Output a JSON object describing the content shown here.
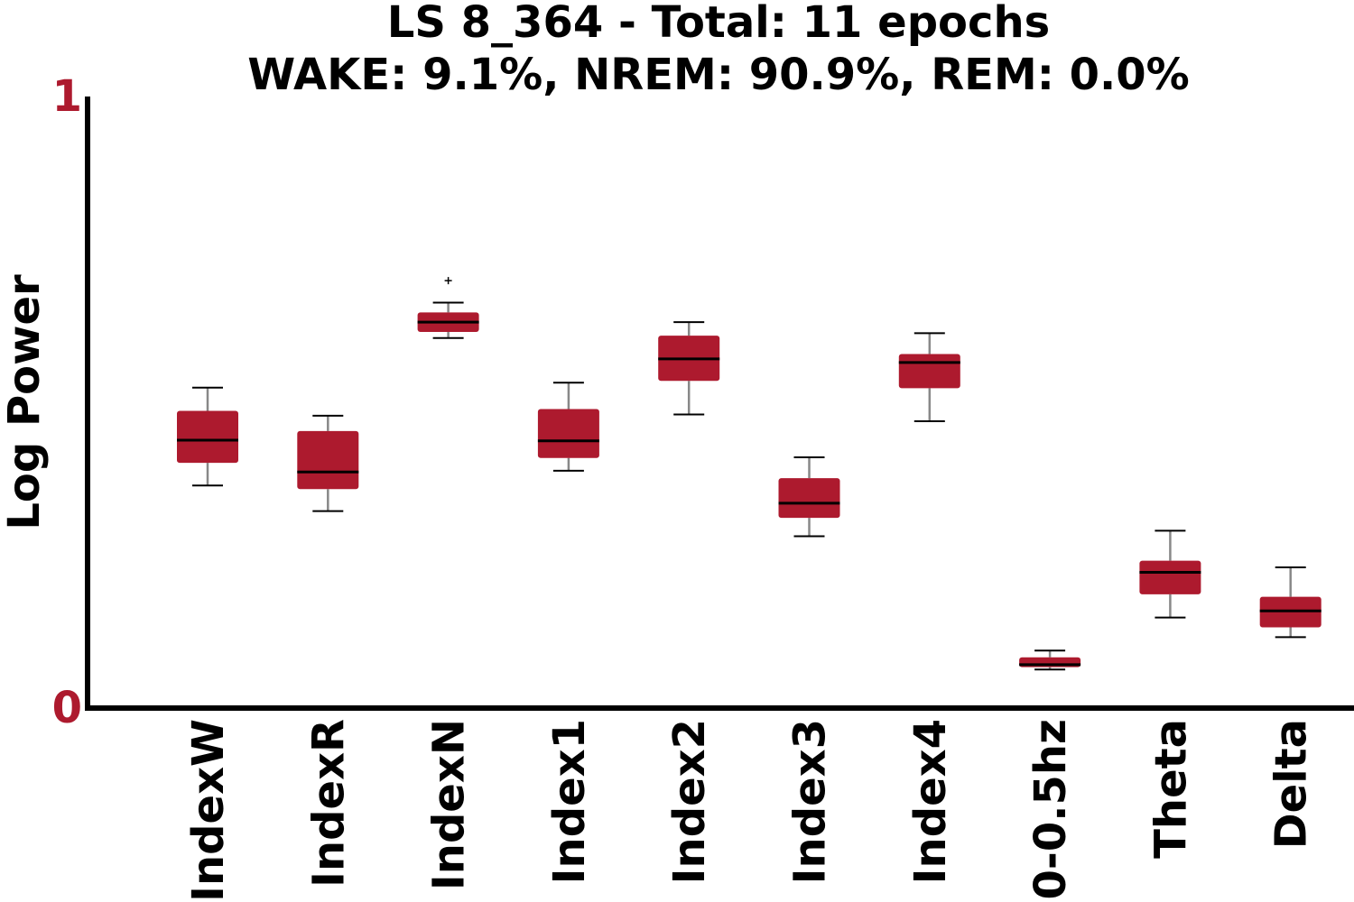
{
  "chart_data": {
    "type": "box",
    "title": "LS 8_364 - Total: 11 epochs",
    "subtitle": "WAKE: 9.1%, NREM: 90.9%, REM: 0.0%",
    "xlabel": "",
    "ylabel": "Log Power",
    "ylim": [
      0,
      1
    ],
    "yticks": [
      "0",
      "1"
    ],
    "categories": [
      "IndexW",
      "IndexR",
      "IndexN",
      "Index1",
      "Index2",
      "Index3",
      "Index4",
      "0-0.5hz",
      "Theta",
      "Delta"
    ],
    "boxes": [
      {
        "whisker_low": 0.364,
        "q1": 0.401,
        "median": 0.438,
        "q3": 0.486,
        "whisker_high": 0.524,
        "outliers": []
      },
      {
        "whisker_low": 0.322,
        "q1": 0.358,
        "median": 0.386,
        "q3": 0.453,
        "whisker_high": 0.478,
        "outliers": []
      },
      {
        "whisker_low": 0.605,
        "q1": 0.615,
        "median": 0.631,
        "q3": 0.647,
        "whisker_high": 0.663,
        "outliers": [
          0.699
        ]
      },
      {
        "whisker_low": 0.388,
        "q1": 0.409,
        "median": 0.437,
        "q3": 0.489,
        "whisker_high": 0.532,
        "outliers": []
      },
      {
        "whisker_low": 0.48,
        "q1": 0.535,
        "median": 0.571,
        "q3": 0.609,
        "whisker_high": 0.631,
        "outliers": []
      },
      {
        "whisker_low": 0.281,
        "q1": 0.311,
        "median": 0.335,
        "q3": 0.376,
        "whisker_high": 0.41,
        "outliers": []
      },
      {
        "whisker_low": 0.469,
        "q1": 0.523,
        "median": 0.565,
        "q3": 0.579,
        "whisker_high": 0.613,
        "outliers": []
      },
      {
        "whisker_low": 0.063,
        "q1": 0.067,
        "median": 0.071,
        "q3": 0.083,
        "whisker_high": 0.094,
        "outliers": []
      },
      {
        "whisker_low": 0.148,
        "q1": 0.186,
        "median": 0.222,
        "q3": 0.241,
        "whisker_high": 0.29,
        "outliers": []
      },
      {
        "whisker_low": 0.116,
        "q1": 0.132,
        "median": 0.159,
        "q3": 0.182,
        "whisker_high": 0.23,
        "outliers": []
      }
    ],
    "grid": false,
    "legend": "none",
    "colors": {
      "box_fill": "#ad1a2e",
      "median_line": "#000000",
      "whisker": "#888888",
      "cap": "#000000",
      "axis": "#000000",
      "tick_label": "#ad1a2e",
      "text": "#000000"
    }
  }
}
